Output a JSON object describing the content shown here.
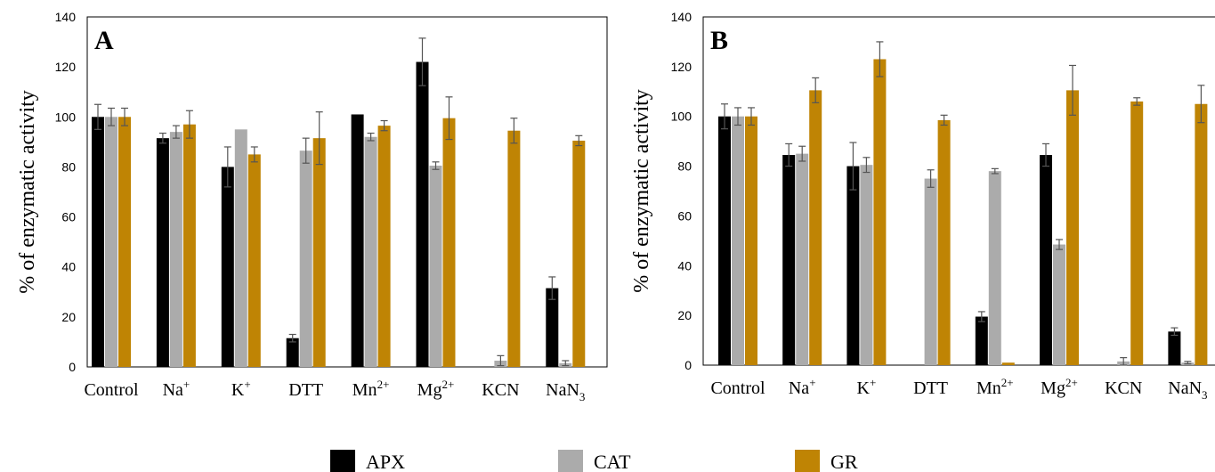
{
  "colors": {
    "APX": "#000000",
    "CAT": "#ababab",
    "GR": "#bf8404",
    "error": "#555555"
  },
  "legend": [
    "APX",
    "CAT",
    "GR"
  ],
  "chart_data": [
    {
      "type": "bar",
      "panel": "A",
      "ylabel": "% of enzymatic activity",
      "ylim": [
        0,
        140
      ],
      "yticks": [
        0,
        20,
        40,
        60,
        80,
        100,
        120,
        140
      ],
      "categories": [
        {
          "base": "Control",
          "sup": "",
          "sub": ""
        },
        {
          "base": "Na",
          "sup": "+",
          "sub": ""
        },
        {
          "base": "K",
          "sup": "+",
          "sub": ""
        },
        {
          "base": "DTT",
          "sup": "",
          "sub": ""
        },
        {
          "base": "Mn",
          "sup": "2+",
          "sub": ""
        },
        {
          "base": "Mg",
          "sup": "2+",
          "sub": ""
        },
        {
          "base": "KCN",
          "sup": "",
          "sub": ""
        },
        {
          "base": "NaN",
          "sup": "",
          "sub": "3"
        }
      ],
      "series": [
        {
          "name": "APX",
          "values": [
            100,
            91.5,
            80,
            11.5,
            101,
            122,
            0,
            31.5
          ],
          "errors": [
            5,
            2,
            8,
            1.5,
            0,
            9.5,
            0,
            4.5
          ]
        },
        {
          "name": "CAT",
          "values": [
            100,
            94,
            95,
            86.5,
            92,
            80.5,
            2.5,
            1.5
          ],
          "errors": [
            3.5,
            2.5,
            0,
            5,
            1.5,
            1.5,
            2,
            1
          ]
        },
        {
          "name": "GR",
          "values": [
            100,
            97,
            85,
            91.5,
            96.5,
            99.5,
            94.5,
            90.5
          ],
          "errors": [
            3.5,
            5.5,
            3,
            10.5,
            2,
            8.5,
            5,
            2
          ]
        }
      ]
    },
    {
      "type": "bar",
      "panel": "B",
      "ylabel": "% of enzymatic activity",
      "ylim": [
        0,
        140
      ],
      "yticks": [
        0,
        20,
        40,
        60,
        80,
        100,
        120,
        140
      ],
      "categories": [
        {
          "base": "Control",
          "sup": "",
          "sub": ""
        },
        {
          "base": "Na",
          "sup": "+",
          "sub": ""
        },
        {
          "base": "K",
          "sup": "+",
          "sub": ""
        },
        {
          "base": "DTT",
          "sup": "",
          "sub": ""
        },
        {
          "base": "Mn",
          "sup": "2+",
          "sub": ""
        },
        {
          "base": "Mg",
          "sup": "2+",
          "sub": ""
        },
        {
          "base": "KCN",
          "sup": "",
          "sub": ""
        },
        {
          "base": "NaN",
          "sup": "",
          "sub": "3"
        }
      ],
      "series": [
        {
          "name": "APX",
          "values": [
            100,
            84.5,
            80,
            0,
            19.5,
            84.5,
            0,
            13.5
          ],
          "errors": [
            5,
            4.5,
            9.5,
            0,
            2,
            4.5,
            0,
            1.5
          ]
        },
        {
          "name": "CAT",
          "values": [
            100,
            85,
            80.5,
            75,
            78,
            48.5,
            1.5,
            1
          ],
          "errors": [
            3.5,
            3,
            3,
            3.5,
            1,
            2,
            1.5,
            0.5
          ]
        },
        {
          "name": "GR",
          "values": [
            100,
            110.5,
            123,
            98.5,
            1,
            110.5,
            106,
            105
          ],
          "errors": [
            3.5,
            5,
            7,
            2,
            0,
            10,
            1.5,
            7.5
          ]
        }
      ]
    }
  ]
}
